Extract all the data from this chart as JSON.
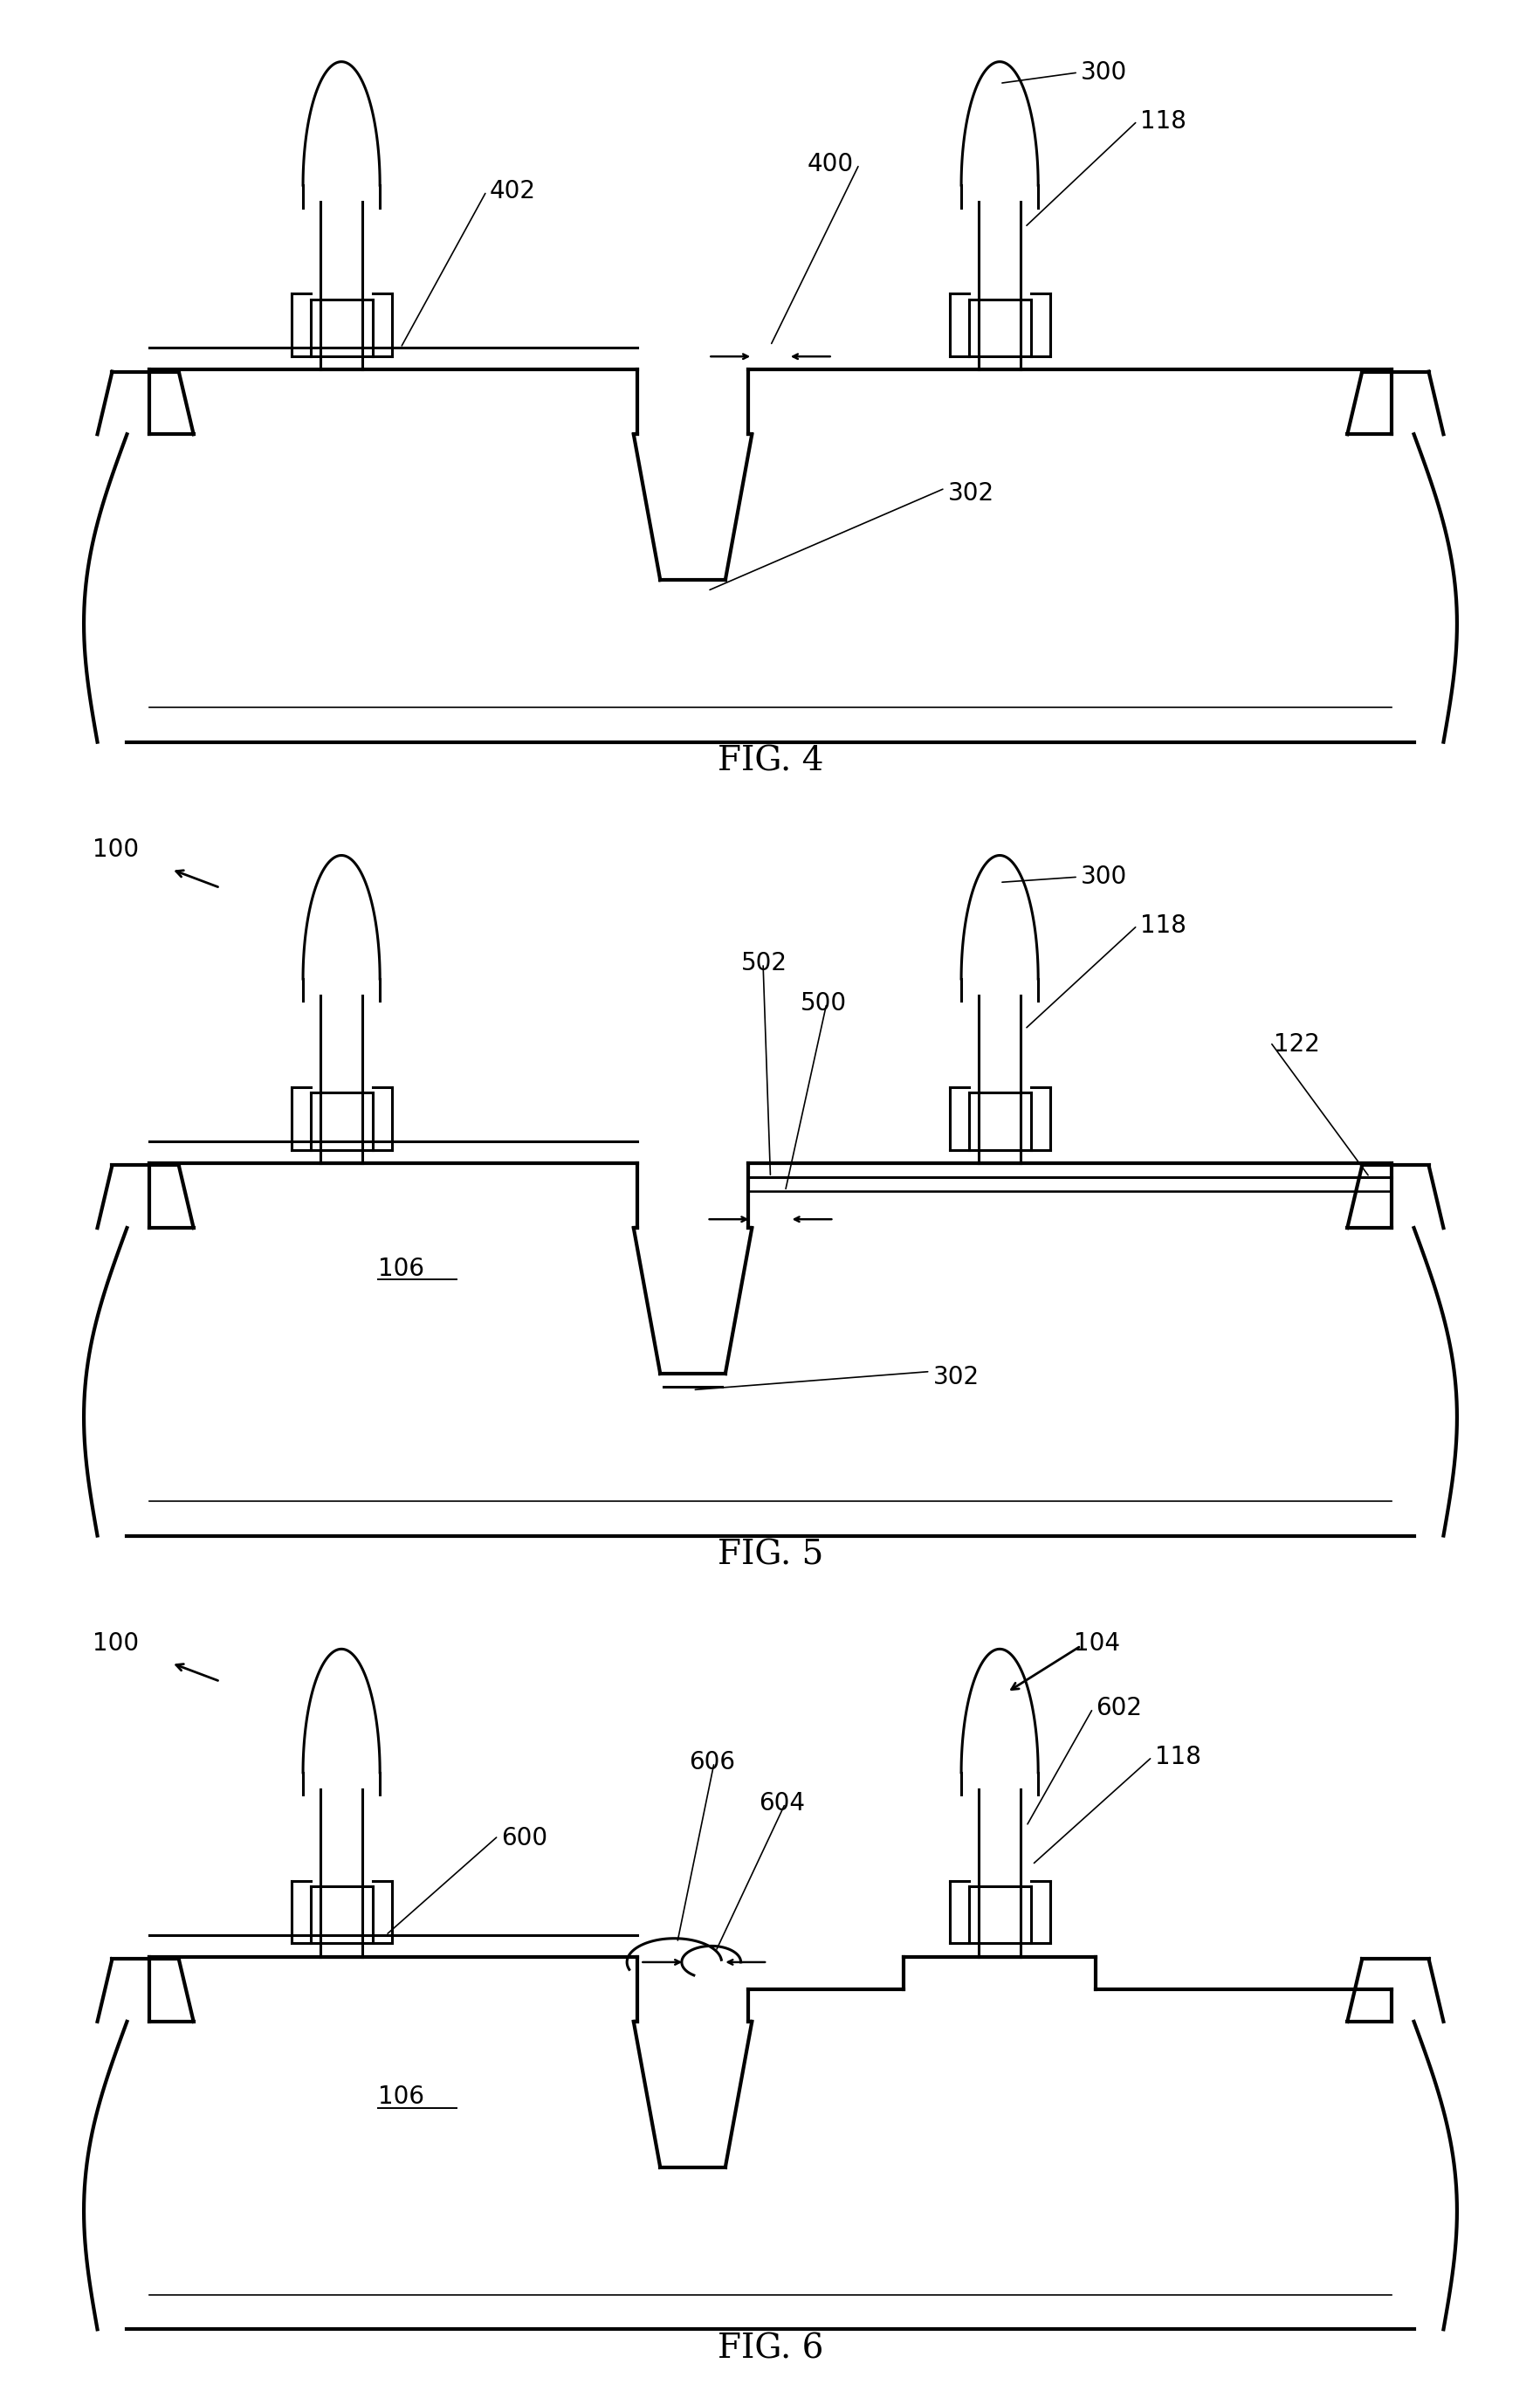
{
  "line_color": "#000000",
  "line_width": 2.2,
  "bg_color": "#ffffff",
  "font_size": 20,
  "fig_titles": [
    "FIG. 4",
    "FIG. 5",
    "FIG. 6"
  ]
}
